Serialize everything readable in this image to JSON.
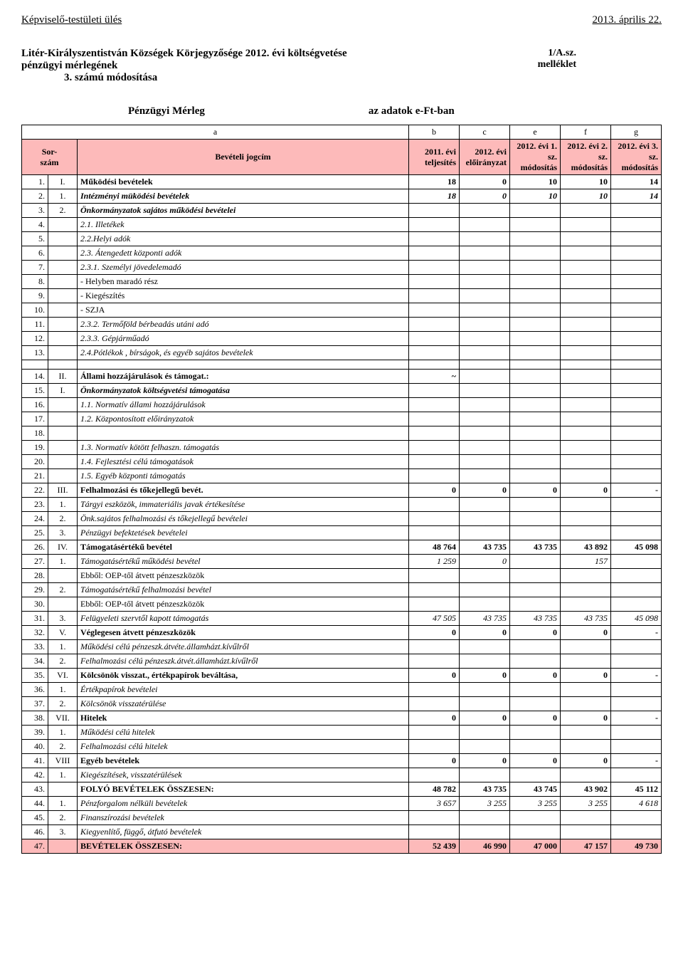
{
  "header": {
    "left": "Képviselő-testületi ülés",
    "right": "2013. április 22."
  },
  "title": {
    "line1": "Litér-Királyszentistván Községek Körjegyzősége 2012. évi költségvetése",
    "line2": "pénzügyi mérlegének",
    "line3": "3. számú módosítása",
    "annex1": "1/A.sz.",
    "annex2": "melléklet"
  },
  "subtitle": {
    "left": "Pénzügyi Mérleg",
    "right": "az adatok e-Ft-ban"
  },
  "colLetters": [
    "a",
    "b",
    "c",
    "e",
    "f",
    "g"
  ],
  "columns": {
    "sor": "Sor-\nszám",
    "jogcim": "Bevételi jogcím",
    "c2011": "2011. évi teljesítés",
    "c2012e": "2012. évi előirányzat",
    "c2012_1": "2012. évi 1. sz. módosítás",
    "c2012_2": "2012. évi 2. sz. módosítás",
    "c2012_3": "2012. évi 3. sz. módosítás"
  },
  "rows": [
    {
      "n": "1.",
      "cat": "I.",
      "title": "Működési bevételek",
      "v": [
        "18",
        "0",
        "10",
        "10",
        "14"
      ],
      "style": "bold"
    },
    {
      "n": "2.",
      "cat": "1.",
      "title": "Intézményi müködési bevételek",
      "v": [
        "18",
        "0",
        "10",
        "10",
        "14"
      ],
      "style": "bolditalic"
    },
    {
      "n": "3.",
      "cat": "2.",
      "title": "Önkormányzatok sajátos működési bevételei",
      "v": [
        "",
        "",
        "",
        "",
        ""
      ],
      "style": "bolditalic"
    },
    {
      "n": "4.",
      "cat": "",
      "title": "2.1. Illetékek",
      "v": [
        "",
        "",
        "",
        "",
        ""
      ],
      "style": "italic"
    },
    {
      "n": "5.",
      "cat": "",
      "title": "2.2.Helyi adók",
      "v": [
        "",
        "",
        "",
        "",
        ""
      ],
      "style": "italic"
    },
    {
      "n": "6.",
      "cat": "",
      "title": "2.3. Átengedett központi adók",
      "v": [
        "",
        "",
        "",
        "",
        ""
      ],
      "style": "italic"
    },
    {
      "n": "7.",
      "cat": "",
      "title": "2.3.1. Személyi jövedelemadó",
      "v": [
        "",
        "",
        "",
        "",
        ""
      ],
      "style": "italic"
    },
    {
      "n": "8.",
      "cat": "",
      "title": "   - Helyben maradó rész",
      "v": [
        "",
        "",
        "",
        "",
        ""
      ]
    },
    {
      "n": "9.",
      "cat": "",
      "title": "   - Kiegészítés",
      "v": [
        "",
        "",
        "",
        "",
        ""
      ]
    },
    {
      "n": "10.",
      "cat": "",
      "title": "   - SZJA",
      "v": [
        "",
        "",
        "",
        "",
        ""
      ]
    },
    {
      "n": "11.",
      "cat": "",
      "title": "2.3.2. Termőföld bérbeadás utáni adó",
      "v": [
        "",
        "",
        "",
        "",
        ""
      ],
      "style": "italic"
    },
    {
      "n": "12.",
      "cat": "",
      "title": "2.3.3. Gépjárműadó",
      "v": [
        "",
        "",
        "",
        "",
        ""
      ],
      "style": "italic"
    },
    {
      "n": "13.",
      "cat": "",
      "title": "2.4.Pótlékok , bírságok, és egyéb sajátos bevételek",
      "v": [
        "",
        "",
        "",
        "",
        ""
      ],
      "style": "italic"
    }
  ],
  "rows2": [
    {
      "n": "14.",
      "cat": "II.",
      "title": "Állami hozzájárulások és támogat.:",
      "v": [
        "~",
        "",
        "",
        "",
        ""
      ],
      "style": "bold"
    },
    {
      "n": "15.",
      "cat": "I.",
      "title": "Önkormányzatok költségvetési támogatása",
      "v": [
        "",
        "",
        "",
        "",
        ""
      ],
      "style": "bolditalic"
    },
    {
      "n": "16.",
      "cat": "",
      "title": "1.1. Normatív állami hozzájárulások",
      "v": [
        "",
        "",
        "",
        "",
        ""
      ],
      "style": "italic"
    },
    {
      "n": "17.",
      "cat": "",
      "title": "1.2. Központosított előirányzatok",
      "v": [
        "",
        "",
        "",
        "",
        ""
      ],
      "style": "italic"
    },
    {
      "n": "18.",
      "cat": "",
      "title": "",
      "v": [
        "",
        "",
        "",
        "",
        ""
      ]
    },
    {
      "n": "19.",
      "cat": "",
      "title": "1.3. Normatív kötött felhaszn. támogatás",
      "v": [
        "",
        "",
        "",
        "",
        ""
      ],
      "style": "italic"
    },
    {
      "n": "20.",
      "cat": "",
      "title": "1.4. Fejlesztési célú támogatások",
      "v": [
        "",
        "",
        "",
        "",
        ""
      ],
      "style": "italic"
    },
    {
      "n": "21.",
      "cat": "",
      "title": "1.5. Egyéb központi támogatás",
      "v": [
        "",
        "",
        "",
        "",
        ""
      ],
      "style": "italic"
    },
    {
      "n": "22.",
      "cat": "III.",
      "title": "Felhalmozási és tőkejellegű bevét.",
      "v": [
        "0",
        "0",
        "0",
        "0",
        "-"
      ],
      "style": "bold"
    },
    {
      "n": "23.",
      "cat": "1.",
      "title": "Tárgyi eszközök, immateriális javak értékesítése",
      "v": [
        "",
        "",
        "",
        "",
        ""
      ],
      "style": "italic"
    },
    {
      "n": "24.",
      "cat": "2.",
      "title": "Önk.sajátos felhalmozási és tőkejellegű bevételei",
      "v": [
        "",
        "",
        "",
        "",
        ""
      ],
      "style": "italic"
    },
    {
      "n": "25.",
      "cat": "3.",
      "title": "Pénzügyi befektetések bevételei",
      "v": [
        "",
        "",
        "",
        "",
        ""
      ],
      "style": "italic"
    },
    {
      "n": "26.",
      "cat": "IV.",
      "title": "Támogatásértékű bevétel",
      "v": [
        "48 764",
        "43 735",
        "43 735",
        "43 892",
        "45 098"
      ],
      "style": "bold"
    },
    {
      "n": "27.",
      "cat": "1.",
      "title": "Támogatásértékű működési bevétel",
      "v": [
        "1 259",
        "0",
        "",
        "157",
        ""
      ],
      "style": "italic"
    },
    {
      "n": "28.",
      "cat": "",
      "title": "   Ebből: OEP-től átvett pénzeszközök",
      "v": [
        "",
        "",
        "",
        "",
        ""
      ]
    },
    {
      "n": "29.",
      "cat": "2.",
      "title": "Támogatásértékű felhalmozási bevétel",
      "v": [
        "",
        "",
        "",
        "",
        ""
      ],
      "style": "italic"
    },
    {
      "n": "30.",
      "cat": "",
      "title": "   Ebből: OEP-től átvett pénzeszközök",
      "v": [
        "",
        "",
        "",
        "",
        ""
      ]
    },
    {
      "n": "31.",
      "cat": "3.",
      "title": "Felügyeleti szervtől kapott támogatás",
      "v": [
        "47 505",
        "43 735",
        "43 735",
        "43 735",
        "45 098"
      ],
      "style": "italic"
    },
    {
      "n": "32.",
      "cat": "V.",
      "title": "Véglegesen átvett pénzeszközök",
      "v": [
        "0",
        "0",
        "0",
        "0",
        "-"
      ],
      "style": "bold"
    },
    {
      "n": "33.",
      "cat": "1.",
      "title": "Működési célú pénzeszk.átvéte.államházt.kívűlről",
      "v": [
        "",
        "",
        "",
        "",
        ""
      ],
      "style": "italic"
    },
    {
      "n": "34.",
      "cat": "2.",
      "title": "Felhalmozási célú pénzeszk.átvét.államházt.kívűlről",
      "v": [
        "",
        "",
        "",
        "",
        ""
      ],
      "style": "italic"
    },
    {
      "n": "35.",
      "cat": "VI.",
      "title": "Kölcsönök visszat., értékpapírok beváltása,",
      "v": [
        "0",
        "0",
        "0",
        "0",
        "-"
      ],
      "style": "bold"
    },
    {
      "n": "36.",
      "cat": "1.",
      "title": "Értékpapírok bevételei",
      "v": [
        "",
        "",
        "",
        "",
        ""
      ],
      "style": "italic"
    },
    {
      "n": "37.",
      "cat": "2.",
      "title": "Kölcsönök visszatérülése",
      "v": [
        "",
        "",
        "",
        "",
        ""
      ],
      "style": "italic"
    },
    {
      "n": "38.",
      "cat": "VII.",
      "title": "Hitelek",
      "v": [
        "0",
        "0",
        "0",
        "0",
        "-"
      ],
      "style": "bold"
    },
    {
      "n": "39.",
      "cat": "1.",
      "title": "Működési célú hitelek",
      "v": [
        "",
        "",
        "",
        "",
        ""
      ],
      "style": "italic"
    },
    {
      "n": "40.",
      "cat": "2.",
      "title": "Felhalmozási célú hitelek",
      "v": [
        "",
        "",
        "",
        "",
        ""
      ],
      "style": "italic"
    },
    {
      "n": "41.",
      "cat": "VIII",
      "title": "Egyéb bevételek",
      "v": [
        "0",
        "0",
        "0",
        "0",
        "-"
      ],
      "style": "bold"
    },
    {
      "n": "42.",
      "cat": "1.",
      "title": "Kiegészítések, visszatérülések",
      "v": [
        "",
        "",
        "",
        "",
        ""
      ],
      "style": "italic"
    },
    {
      "n": "43.",
      "cat": "",
      "title": "FOLYÓ BEVÉTELEK ÖSSZESEN:",
      "v": [
        "48 782",
        "43 735",
        "43 745",
        "43 902",
        "45 112"
      ],
      "style": "bold"
    },
    {
      "n": "44.",
      "cat": "1.",
      "title": "Pénzforgalom nélküli bevételek",
      "v": [
        "3 657",
        "3 255",
        "3 255",
        "3 255",
        "4 618"
      ],
      "style": "italic"
    },
    {
      "n": "45.",
      "cat": "2.",
      "title": "Finanszírozási bevételek",
      "v": [
        "",
        "",
        "",
        "",
        ""
      ],
      "style": "italic"
    },
    {
      "n": "46.",
      "cat": "3.",
      "title": "Kiegyenlítő, függő, átfutó bevételek",
      "v": [
        "",
        "",
        "",
        "",
        ""
      ],
      "style": "italic"
    },
    {
      "n": "47.",
      "cat": "",
      "title": "BEVÉTELEK ÖSSZESEN:",
      "v": [
        "52 439",
        "46 990",
        "47 000",
        "47 157",
        "49 730"
      ],
      "style": "bold",
      "colored": true
    }
  ]
}
